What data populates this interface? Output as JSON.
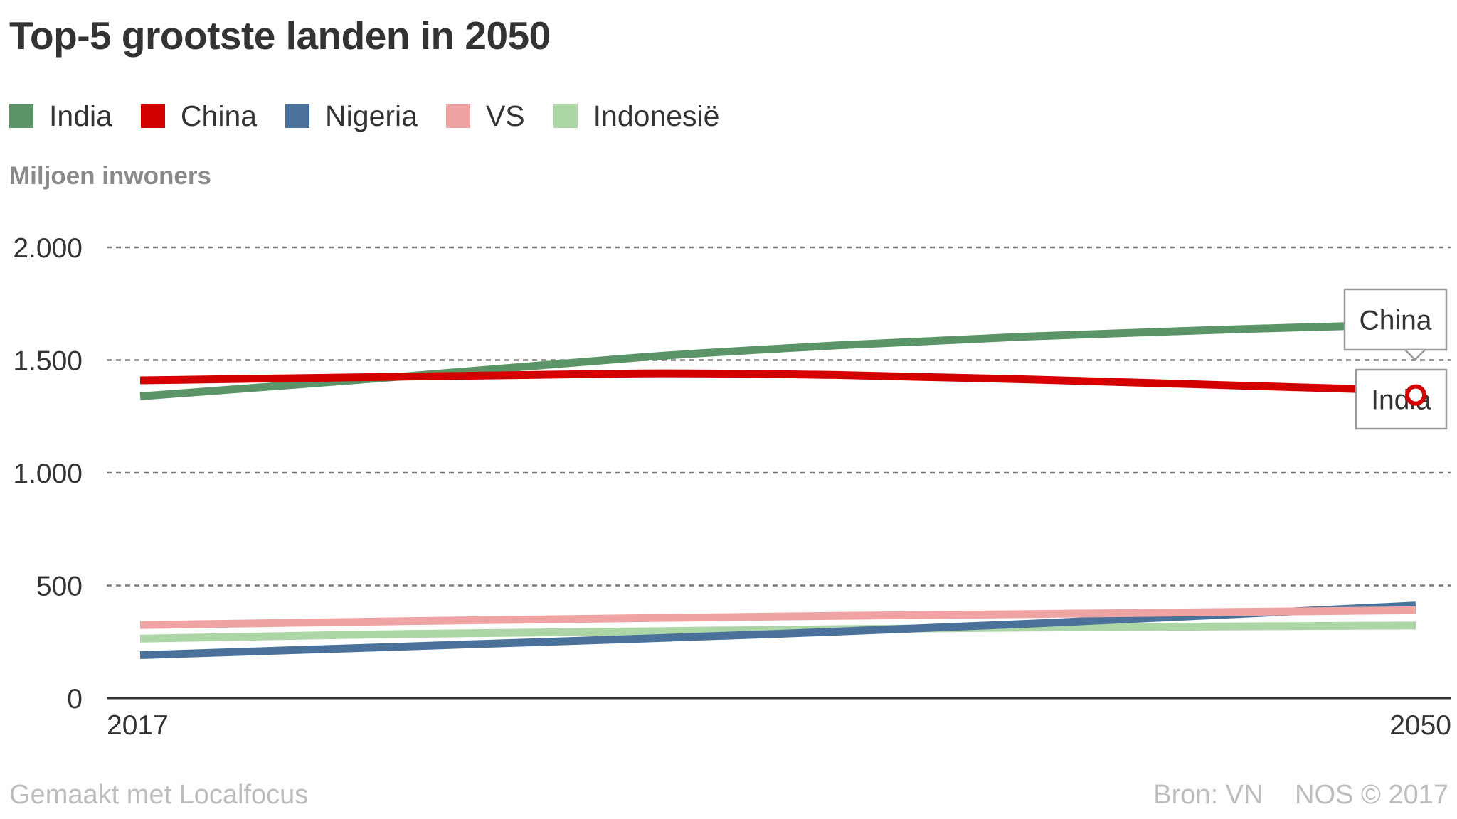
{
  "chart_data": {
    "type": "line",
    "title": "Top-5 grootste landen in 2050",
    "ylabel": "Miljoen inwoners",
    "xlabel": "",
    "x": [
      2017,
      2024,
      2030,
      2035,
      2040,
      2045,
      2050
    ],
    "x_ticks": [
      "2017",
      "2050"
    ],
    "ylim": [
      0,
      2000
    ],
    "y_ticks": [
      {
        "value": 0,
        "label": "0"
      },
      {
        "value": 500,
        "label": "500"
      },
      {
        "value": 1000,
        "label": "1.000"
      },
      {
        "value": 1500,
        "label": "1.500"
      },
      {
        "value": 2000,
        "label": "2.000"
      }
    ],
    "grid": true,
    "legend": "top",
    "series": [
      {
        "name": "India",
        "color": "#5a9467",
        "values": [
          1339,
          1430,
          1513,
          1565,
          1605,
          1635,
          1659
        ]
      },
      {
        "name": "China",
        "color": "#d40000",
        "values": [
          1410,
          1427,
          1441,
          1434,
          1414,
          1389,
          1364
        ]
      },
      {
        "name": "Nigeria",
        "color": "#4a7199",
        "values": [
          191,
          230,
          264,
          295,
          330,
          370,
          411
        ]
      },
      {
        "name": "VS",
        "color": "#efa3a3",
        "values": [
          324,
          342,
          355,
          365,
          373,
          382,
          390
        ]
      },
      {
        "name": "Indonesië",
        "color": "#acd6a6",
        "values": [
          264,
          285,
          296,
          306,
          313,
          318,
          322
        ]
      }
    ],
    "annotations": [
      {
        "label": "China",
        "series": "China",
        "x": 2050
      },
      {
        "label": "India",
        "series": "India",
        "x": 2050
      }
    ]
  },
  "footer": {
    "credit": "Gemaakt met Localfocus",
    "source": "Bron: VN",
    "copyright": "NOS © 2017"
  }
}
